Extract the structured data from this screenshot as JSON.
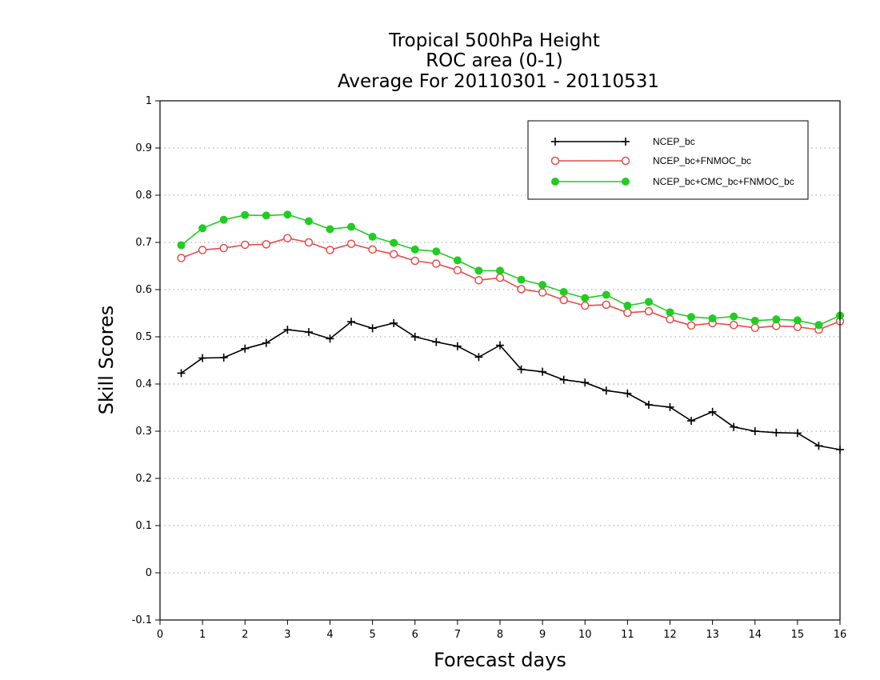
{
  "chart_data": {
    "type": "line",
    "title_lines": [
      "Tropical 500hPa Height",
      "ROC area (0-1)",
      "Average For 20110301 - 20110531"
    ],
    "xlabel": "Forecast days",
    "ylabel": "Skill Scores",
    "xlim": [
      0,
      16
    ],
    "ylim": [
      -0.1,
      1
    ],
    "x_ticks": [
      0,
      1,
      2,
      3,
      4,
      5,
      6,
      7,
      8,
      9,
      10,
      11,
      12,
      13,
      14,
      15,
      16
    ],
    "y_ticks": [
      -0.1,
      0,
      0.1,
      0.2,
      0.3,
      0.4,
      0.5,
      0.6,
      0.7,
      0.8,
      0.9,
      1
    ],
    "y_tick_labels": [
      "-0.1",
      "0",
      "0.1",
      "0.2",
      "0.3",
      "0.4",
      "0.5",
      "0.6",
      "0.7",
      "0.8",
      "0.9",
      "1"
    ],
    "grid": "horizontal dotted",
    "legend_position": "top-right",
    "x": [
      0.5,
      1,
      1.5,
      2,
      2.5,
      3,
      3.5,
      4,
      4.5,
      5,
      5.5,
      6,
      6.5,
      7,
      7.5,
      8,
      8.5,
      9,
      9.5,
      10,
      10.5,
      11,
      11.5,
      12,
      12.5,
      13,
      13.5,
      14,
      14.5,
      15,
      15.5,
      16
    ],
    "series": [
      {
        "name": "NCEP_bc",
        "color": "#000000",
        "marker": "plus",
        "values": [
          0.423,
          0.455,
          0.456,
          0.475,
          0.487,
          0.515,
          0.51,
          0.496,
          0.532,
          0.518,
          0.529,
          0.5,
          0.489,
          0.48,
          0.457,
          0.482,
          0.431,
          0.426,
          0.409,
          0.403,
          0.386,
          0.38,
          0.356,
          0.351,
          0.322,
          0.341,
          0.309,
          0.3,
          0.297,
          0.296,
          0.269,
          0.261
        ]
      },
      {
        "name": "NCEP_bc+FNMOC_bc",
        "color": "#e84a4a",
        "marker": "open-circle",
        "values": [
          0.667,
          0.684,
          0.688,
          0.695,
          0.696,
          0.709,
          0.7,
          0.684,
          0.697,
          0.685,
          0.675,
          0.661,
          0.655,
          0.641,
          0.62,
          0.625,
          0.601,
          0.594,
          0.578,
          0.566,
          0.568,
          0.551,
          0.554,
          0.537,
          0.524,
          0.529,
          0.525,
          0.519,
          0.523,
          0.521,
          0.515,
          0.533
        ]
      },
      {
        "name": "NCEP_bc+CMC_bc+FNMOC_bc",
        "color": "#22cc22",
        "marker": "filled-circle",
        "values": [
          0.694,
          0.73,
          0.748,
          0.758,
          0.757,
          0.759,
          0.745,
          0.728,
          0.733,
          0.712,
          0.699,
          0.685,
          0.681,
          0.662,
          0.64,
          0.64,
          0.621,
          0.61,
          0.595,
          0.582,
          0.589,
          0.566,
          0.574,
          0.552,
          0.542,
          0.539,
          0.543,
          0.534,
          0.537,
          0.535,
          0.525,
          0.545
        ]
      }
    ]
  }
}
